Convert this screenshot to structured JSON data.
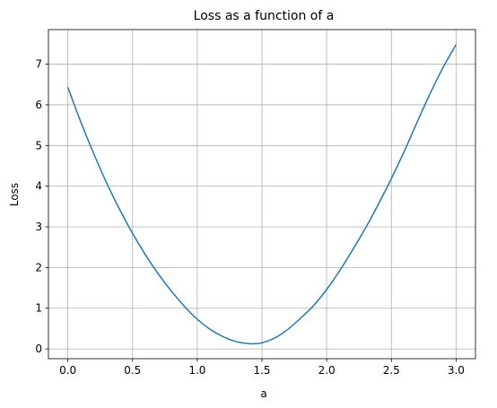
{
  "chart_data": {
    "type": "line",
    "title": "Loss as a function of a",
    "xlabel": "a",
    "ylabel": "Loss",
    "xlim": [
      -0.15,
      3.15
    ],
    "ylim": [
      -0.24,
      7.85
    ],
    "xticks": [
      0.0,
      0.5,
      1.0,
      1.5,
      2.0,
      2.5,
      3.0
    ],
    "xtick_labels": [
      "0.0",
      "0.5",
      "1.0",
      "1.5",
      "2.0",
      "2.5",
      "3.0"
    ],
    "yticks": [
      0,
      1,
      2,
      3,
      4,
      5,
      6,
      7
    ],
    "ytick_labels": [
      "0",
      "1",
      "2",
      "3",
      "4",
      "5",
      "6",
      "7"
    ],
    "grid": true,
    "series": [
      {
        "color": "#1f77b4",
        "x": [
          0.0,
          0.1,
          0.2,
          0.3,
          0.4,
          0.5,
          0.6,
          0.7,
          0.8,
          0.9,
          1.0,
          1.1,
          1.2,
          1.3,
          1.4,
          1.45,
          1.5,
          1.6,
          1.7,
          1.8,
          1.9,
          2.0,
          2.1,
          2.2,
          2.3,
          2.4,
          2.5,
          2.6,
          2.7,
          2.8,
          2.9,
          3.0
        ],
        "y": [
          6.43,
          5.58,
          4.8,
          4.08,
          3.43,
          2.84,
          2.31,
          1.84,
          1.42,
          1.05,
          0.73,
          0.48,
          0.3,
          0.18,
          0.13,
          0.13,
          0.15,
          0.27,
          0.48,
          0.76,
          1.07,
          1.46,
          1.92,
          2.43,
          2.97,
          3.56,
          4.19,
          4.86,
          5.58,
          6.28,
          6.92,
          7.48
        ]
      }
    ]
  }
}
